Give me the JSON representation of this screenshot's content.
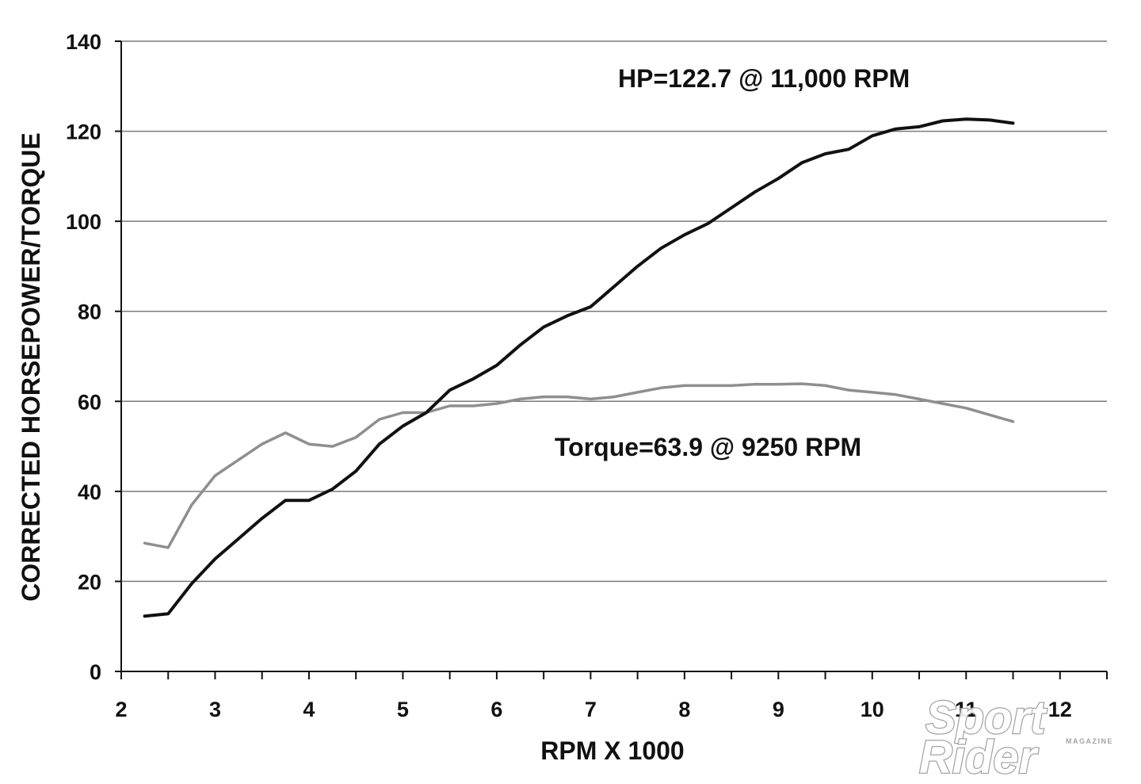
{
  "chart_data": {
    "type": "line",
    "title": "",
    "xlabel": "RPM X 1000",
    "ylabel": "CORRECTED HORSEPOWER/TORQUE",
    "xlim": [
      2,
      12.5
    ],
    "ylim": [
      0,
      140
    ],
    "x_ticks": [
      2,
      3,
      4,
      5,
      6,
      7,
      8,
      9,
      10,
      11,
      12
    ],
    "y_ticks": [
      0,
      20,
      40,
      60,
      80,
      100,
      120,
      140
    ],
    "grid": "horizontal",
    "legend": "none",
    "series": [
      {
        "key": "hp",
        "color": "#111111",
        "x": [
          2.25,
          2.5,
          2.75,
          3.0,
          3.25,
          3.5,
          3.75,
          4.0,
          4.25,
          4.5,
          4.75,
          5.0,
          5.25,
          5.5,
          5.75,
          6.0,
          6.25,
          6.5,
          6.75,
          7.0,
          7.25,
          7.5,
          7.75,
          8.0,
          8.25,
          8.5,
          8.75,
          9.0,
          9.25,
          9.5,
          9.75,
          10.0,
          10.25,
          10.5,
          10.75,
          11.0,
          11.25,
          11.5
        ],
        "values": [
          12.3,
          12.8,
          19.5,
          25.0,
          29.5,
          34.0,
          38.0,
          38.0,
          40.5,
          44.5,
          50.5,
          54.5,
          57.5,
          62.5,
          65.0,
          68.0,
          72.5,
          76.5,
          79.0,
          81.0,
          85.5,
          90.0,
          94.0,
          97.0,
          99.5,
          103.0,
          106.5,
          109.5,
          113.0,
          115.0,
          116.0,
          119.0,
          120.5,
          121.0,
          122.3,
          122.7,
          122.5,
          121.8
        ]
      },
      {
        "key": "torque",
        "color": "#8f8f8f",
        "x": [
          2.25,
          2.5,
          2.75,
          3.0,
          3.25,
          3.5,
          3.75,
          4.0,
          4.25,
          4.5,
          4.75,
          5.0,
          5.25,
          5.5,
          5.75,
          6.0,
          6.25,
          6.5,
          6.75,
          7.0,
          7.25,
          7.5,
          7.75,
          8.0,
          8.25,
          8.5,
          8.75,
          9.0,
          9.25,
          9.5,
          9.75,
          10.0,
          10.25,
          10.5,
          10.75,
          11.0,
          11.25,
          11.5
        ],
        "values": [
          28.5,
          27.5,
          37.0,
          43.5,
          47.0,
          50.5,
          53.0,
          50.5,
          50.0,
          52.0,
          56.0,
          57.5,
          57.5,
          59.0,
          59.0,
          59.5,
          60.5,
          61.0,
          61.0,
          60.5,
          61.0,
          62.0,
          63.0,
          63.5,
          63.5,
          63.5,
          63.8,
          63.8,
          63.9,
          63.5,
          62.5,
          62.0,
          61.5,
          60.5,
          59.5,
          58.5,
          57.0,
          55.5
        ]
      }
    ],
    "annotations": [
      {
        "key": "hp_peak",
        "text": "HP=122.7 @ 11,000 RPM"
      },
      {
        "key": "torque_peak",
        "text": "Torque=63.9 @ 9250 RPM"
      }
    ]
  },
  "watermark": {
    "line1": "Sport",
    "line2": "Rider",
    "tag": "MAGAZINE"
  }
}
